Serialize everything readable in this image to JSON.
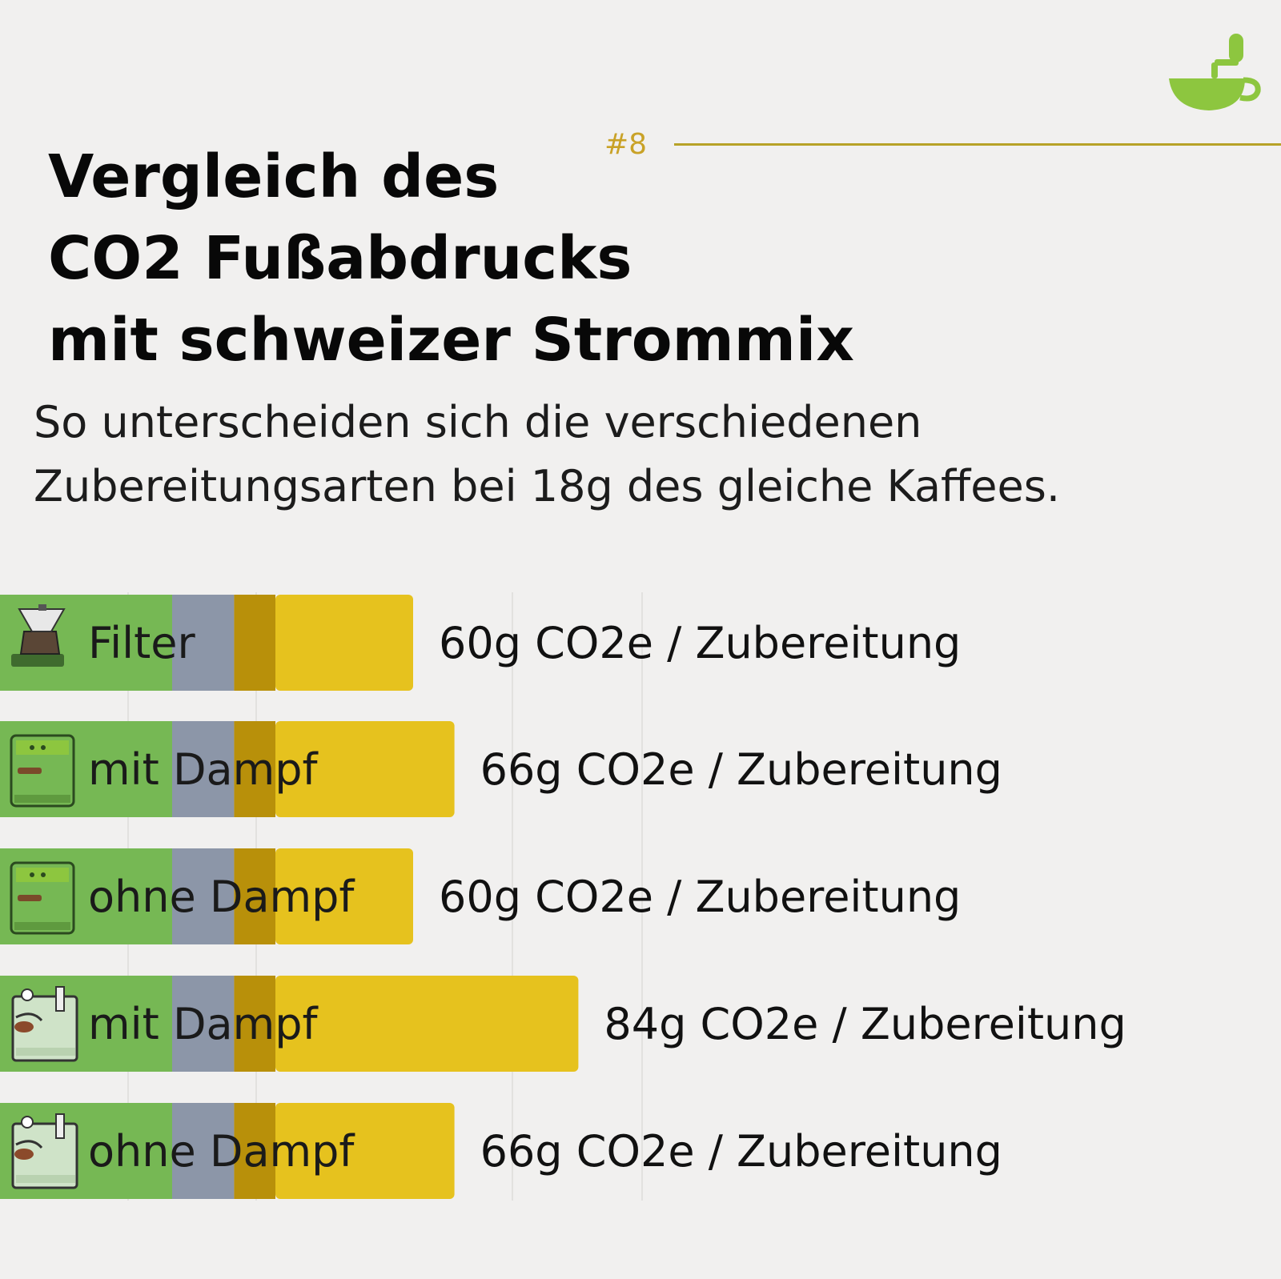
{
  "header": {
    "tag": "#8",
    "title_lines": [
      "Vergleich des",
      "CO2 Fußabdrucks",
      "mit schweizer Strommix"
    ],
    "subtitle_lines": [
      "So unterscheiden sich die verschiedenen",
      "Zubereitungsarten bei 18g des gleiche Kaffees."
    ]
  },
  "logo": {
    "icon": "coffee-cup-grinder-icon",
    "color": "#8dc63f"
  },
  "chart_data": {
    "type": "bar",
    "orientation": "horizontal",
    "stacked": true,
    "unit_suffix": "g CO2e / Zubereitung",
    "categories": [
      "Filter",
      "mit Dampf",
      "ohne Dampf",
      "mit Dampf",
      "ohne Dampf"
    ],
    "category_icons": [
      "filter-dripper-icon",
      "espresso-machine-green-icon",
      "espresso-machine-green-icon",
      "espresso-machine-steel-icon",
      "espresso-machine-steel-icon"
    ],
    "series": [
      {
        "values": [
          25,
          25,
          25,
          25,
          25
        ],
        "color": "#76b854"
      },
      {
        "values": [
          9,
          9,
          9,
          9,
          9
        ],
        "color": "#8c96a8"
      },
      {
        "values": [
          6,
          6,
          6,
          6,
          6
        ],
        "color": "#b8900a"
      },
      {
        "values": [
          20,
          26,
          20,
          44,
          26
        ],
        "color": "#e6c21e"
      }
    ],
    "totals": [
      60,
      66,
      60,
      84,
      66
    ],
    "value_labels": [
      "60g CO2e / Zubereitung",
      "66g CO2e / Zubereitung",
      "60g CO2e / Zubereitung",
      "84g CO2e / Zubereitung",
      "66g CO2e / Zubereitung"
    ],
    "xlim": [
      0,
      100
    ],
    "grid": true,
    "title": "",
    "xlabel": "",
    "ylabel": ""
  }
}
